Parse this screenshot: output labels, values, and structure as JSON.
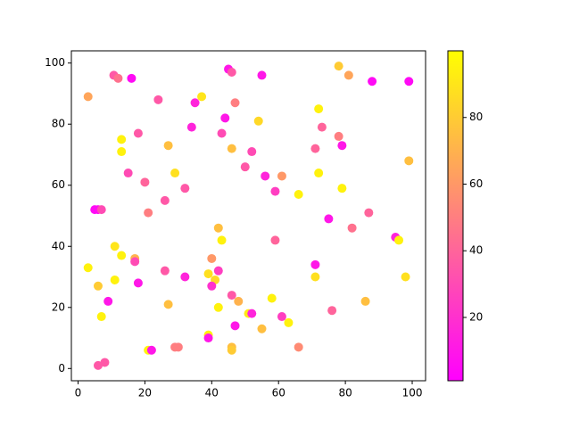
{
  "chart_data": {
    "type": "scatter",
    "x": [
      3,
      10.7,
      12,
      16,
      24,
      35,
      37,
      45,
      46,
      55,
      78,
      81,
      88,
      99,
      47,
      72,
      54,
      44,
      34,
      73,
      43,
      18,
      13,
      78,
      79,
      46,
      27,
      71,
      52,
      13,
      50,
      99,
      29,
      15,
      72,
      61,
      56,
      20,
      32,
      79,
      59,
      66,
      26,
      5,
      6,
      7,
      21,
      87,
      75,
      42,
      82,
      43,
      59,
      95,
      96,
      11,
      13,
      17,
      17,
      40,
      71,
      3,
      26,
      42,
      39,
      71,
      98,
      32,
      41,
      11,
      18,
      6,
      40,
      46,
      58,
      9,
      48,
      86,
      27,
      42,
      76,
      51,
      52,
      61,
      7,
      63,
      47,
      55,
      39,
      39,
      29,
      30,
      46,
      46,
      66,
      21,
      22,
      8,
      6
    ],
    "y": [
      89,
      96,
      95,
      95,
      88,
      87,
      89,
      98,
      97,
      96,
      99,
      96,
      94,
      94,
      87,
      85,
      81,
      82,
      79,
      79,
      77,
      77,
      75,
      76,
      73,
      72,
      73,
      72,
      71,
      71,
      66,
      68,
      64,
      64,
      64,
      63,
      63,
      61,
      59,
      59,
      58,
      57,
      55,
      52,
      52,
      52,
      51,
      51,
      49,
      46,
      46,
      42,
      42,
      43,
      42,
      40,
      37,
      36,
      35,
      36,
      34,
      33,
      32,
      32,
      31,
      30,
      30,
      30,
      29,
      29,
      28,
      27,
      27,
      24,
      23,
      22,
      22,
      22,
      21,
      20,
      19,
      18,
      18,
      17,
      17,
      15,
      14,
      13,
      11,
      10,
      7,
      7,
      7,
      6,
      7,
      6,
      6,
      2,
      1
    ],
    "c": [
      65,
      35,
      45,
      5,
      35,
      15,
      90,
      10,
      35,
      10,
      80,
      65,
      5,
      5,
      50,
      95,
      85,
      10,
      15,
      40,
      30,
      35,
      95,
      50,
      10,
      75,
      75,
      40,
      30,
      95,
      35,
      75,
      88,
      30,
      95,
      60,
      15,
      40,
      35,
      95,
      25,
      95,
      35,
      5,
      5,
      30,
      50,
      40,
      10,
      75,
      45,
      95,
      40,
      15,
      95,
      90,
      95,
      70,
      30,
      60,
      10,
      95,
      35,
      25,
      88,
      88,
      88,
      15,
      85,
      95,
      10,
      80,
      20,
      35,
      95,
      10,
      70,
      75,
      75,
      95,
      40,
      92,
      15,
      25,
      95,
      95,
      10,
      75,
      95,
      10,
      50,
      50,
      75,
      80,
      55,
      95,
      10,
      35,
      35
    ],
    "xlim": [
      -2,
      104
    ],
    "ylim": [
      -4,
      104
    ],
    "xticks": [
      0,
      20,
      40,
      60,
      80,
      100
    ],
    "yticks": [
      0,
      20,
      40,
      60,
      80,
      100
    ],
    "colorbar": {
      "cmap": "spring",
      "lim": [
        1,
        100
      ],
      "ticks": [
        20,
        40,
        60,
        80
      ]
    }
  }
}
